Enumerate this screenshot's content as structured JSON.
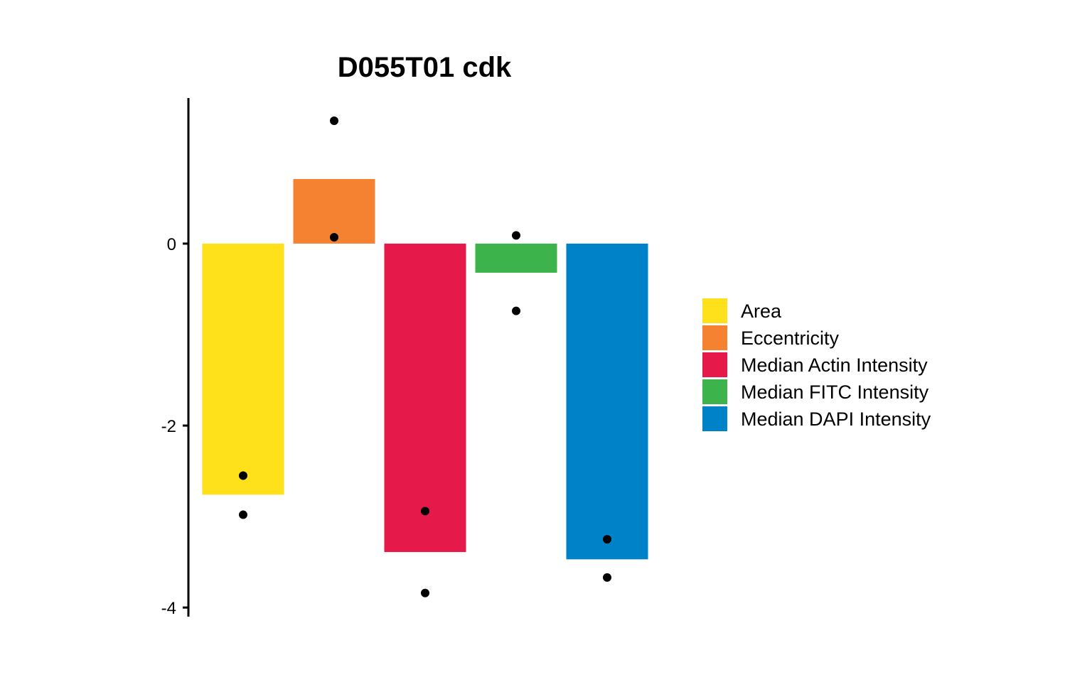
{
  "chart_data": {
    "type": "bar",
    "title": "D055T01 cdk",
    "xlabel": "",
    "ylabel": "",
    "ylim": [
      -4.1,
      1.6
    ],
    "yticks": [
      0,
      -2,
      -4
    ],
    "grid": false,
    "legend_position": "right",
    "categories": [
      "Area",
      "Eccentricity",
      "Median Actin Intensity",
      "Median FITC Intensity",
      "Median DAPI Intensity"
    ],
    "colors": [
      "#FEE11A",
      "#F58230",
      "#E6194B",
      "#3CB44B",
      "#0082C8"
    ],
    "values": [
      -2.76,
      0.71,
      -3.39,
      -0.32,
      -3.47
    ],
    "points": [
      [
        -2.55,
        -2.98
      ],
      [
        1.35,
        0.07
      ],
      [
        -2.94,
        -3.84
      ],
      [
        0.09,
        -0.74
      ],
      [
        -3.25,
        -3.67
      ]
    ]
  }
}
